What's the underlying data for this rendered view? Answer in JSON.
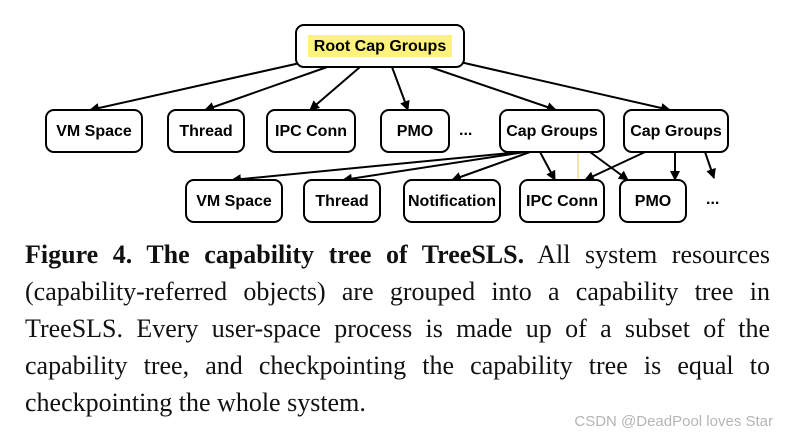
{
  "diagram": {
    "root": {
      "id": "root",
      "label": "Root Cap Groups",
      "highlight": "#fdf27a"
    },
    "level1": [
      {
        "id": "l1-vm",
        "label": "VM Space"
      },
      {
        "id": "l1-thread",
        "label": "Thread"
      },
      {
        "id": "l1-ipc",
        "label": "IPC Conn"
      },
      {
        "id": "l1-pmo",
        "label": "PMO"
      },
      {
        "id": "l1-capA",
        "label": "Cap Groups"
      },
      {
        "id": "l1-capB",
        "label": "Cap Groups"
      }
    ],
    "level2": [
      {
        "id": "l2-vm",
        "label": "VM Space"
      },
      {
        "id": "l2-thread",
        "label": "Thread"
      },
      {
        "id": "l2-notif",
        "label": "Notification"
      },
      {
        "id": "l2-ipc",
        "label": "IPC Conn"
      },
      {
        "id": "l2-pmo",
        "label": "PMO"
      }
    ],
    "ellipsis_level1": "...",
    "ellipsis_level2": "...",
    "edges": [
      {
        "from": "root",
        "to": "l1-vm"
      },
      {
        "from": "root",
        "to": "l1-thread"
      },
      {
        "from": "root",
        "to": "l1-ipc"
      },
      {
        "from": "root",
        "to": "l1-pmo"
      },
      {
        "from": "root",
        "to": "l1-capA"
      },
      {
        "from": "root",
        "to": "l1-capB"
      },
      {
        "from": "l1-capA",
        "to": "l2-vm"
      },
      {
        "from": "l1-capA",
        "to": "l2-thread"
      },
      {
        "from": "l1-capA",
        "to": "l2-notif"
      },
      {
        "from": "l1-capA",
        "to": "l2-ipc"
      },
      {
        "from": "l1-capA",
        "to": "l2-pmo"
      },
      {
        "from": "l1-capB",
        "to": "l2-ipc"
      },
      {
        "from": "l1-capB",
        "to": "l2-pmo"
      }
    ]
  },
  "caption": {
    "heading": "Figure 4. The capability tree of TreeSLS.",
    "body": "All system resources (capability-referred objects) are grouped into a capability tree in TreeSLS. Every user-space process is made up of a subset of the capability tree, and checkpointing the capability tree is equal to checkpointing the whole system."
  },
  "watermark": "CSDN @DeadPool loves Star"
}
